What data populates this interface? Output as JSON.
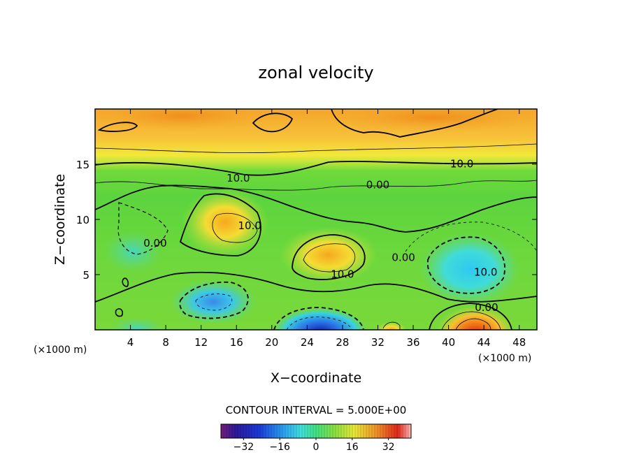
{
  "chart_data": {
    "type": "heatmap",
    "title": "zonal velocity",
    "xlabel": "X−coordinate",
    "ylabel": "Z−coordinate",
    "x_unit": "(×1000 m)",
    "y_unit": "(×1000 m)",
    "xlim": [
      0,
      50
    ],
    "ylim": [
      0,
      20
    ],
    "x_ticks": [
      4,
      8,
      12,
      16,
      20,
      24,
      28,
      32,
      36,
      40,
      44,
      48
    ],
    "y_ticks": [
      5,
      10,
      15
    ],
    "contour_interval_label": "CONTOUR INTERVAL = 5.000E+00",
    "colorbar": {
      "range": [
        -42,
        42
      ],
      "ticks": [
        -32,
        -16,
        0,
        16,
        32
      ],
      "tick_labels": [
        "−32",
        "−16",
        "0",
        "16",
        "32"
      ]
    },
    "contour_labels": [
      {
        "text": "10.0",
        "x": 16.2,
        "y": 13.8
      },
      {
        "text": "10.0",
        "x": 17.5,
        "y": 9.5
      },
      {
        "text": "10.0",
        "x": 28.0,
        "y": 5.1
      },
      {
        "text": "10.0",
        "x": 41.5,
        "y": 15.1
      },
      {
        "text": "10.0",
        "x": 44.2,
        "y": 5.3
      },
      {
        "text": "0.00",
        "x": 32.0,
        "y": 13.2
      },
      {
        "text": "0.00",
        "x": 6.8,
        "y": 7.9
      },
      {
        "text": "0.00",
        "x": 34.9,
        "y": 6.6
      },
      {
        "text": "0.00",
        "x": 44.3,
        "y": 2.1
      }
    ],
    "features": [
      {
        "kind": "max",
        "x": 43.5,
        "y": 0.5,
        "value": 40
      },
      {
        "kind": "max",
        "x": 26.5,
        "y": 6.8,
        "value": 17
      },
      {
        "kind": "max",
        "x": 15.5,
        "y": 9.5,
        "value": 17
      },
      {
        "kind": "min",
        "x": 26.0,
        "y": 0.5,
        "value": -30
      },
      {
        "kind": "min",
        "x": 13.5,
        "y": 2.2,
        "value": -18
      },
      {
        "kind": "min",
        "x": 42.5,
        "y": 5.3,
        "value": -11
      },
      {
        "kind": "min",
        "x": 4.0,
        "y": 7.5,
        "value": -8
      }
    ]
  }
}
